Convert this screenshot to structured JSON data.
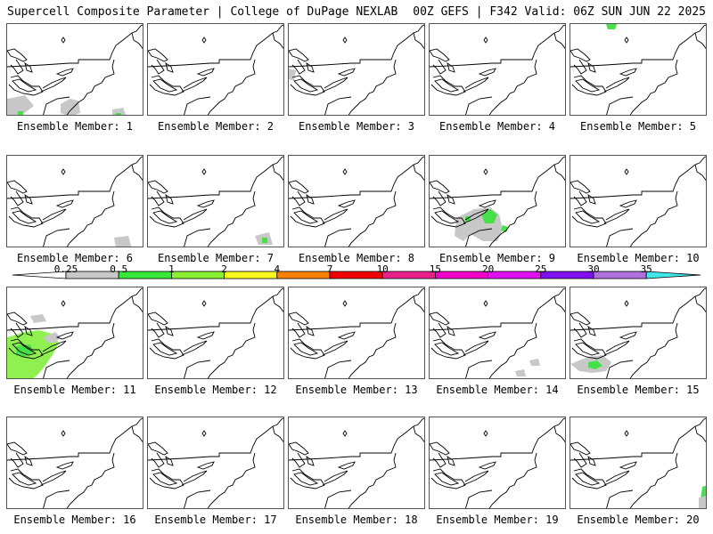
{
  "header": {
    "left": "Supercell Composite Parameter | College of DuPage NEXLAB",
    "right": "00Z GEFS | F342 Valid: 06Z SUN JUN 22 2025"
  },
  "panels": [
    {
      "label": "Ensemble Member: 1"
    },
    {
      "label": "Ensemble Member: 2"
    },
    {
      "label": "Ensemble Member: 3"
    },
    {
      "label": "Ensemble Member: 4"
    },
    {
      "label": "Ensemble Member: 5"
    },
    {
      "label": "Ensemble Member: 6"
    },
    {
      "label": "Ensemble Member: 7"
    },
    {
      "label": "Ensemble Member: 8"
    },
    {
      "label": "Ensemble Member: 9"
    },
    {
      "label": "Ensemble Member: 10"
    },
    {
      "label": "Ensemble Member: 11"
    },
    {
      "label": "Ensemble Member: 12"
    },
    {
      "label": "Ensemble Member: 13"
    },
    {
      "label": "Ensemble Member: 14"
    },
    {
      "label": "Ensemble Member: 15"
    },
    {
      "label": "Ensemble Member: 16"
    },
    {
      "label": "Ensemble Member: 17"
    },
    {
      "label": "Ensemble Member: 18"
    },
    {
      "label": "Ensemble Member: 19"
    },
    {
      "label": "Ensemble Member: 20"
    }
  ],
  "colorbar": {
    "labels": [
      "0.25",
      "0.5",
      "1",
      "2",
      "4",
      "7",
      "10",
      "15",
      "20",
      "25",
      "30",
      "35"
    ],
    "colors": [
      "#c8c8c8",
      "#38e838",
      "#88f030",
      "#f8f820",
      "#f88000",
      "#f00000",
      "#e8208a",
      "#f000c8",
      "#e010f0",
      "#8010f0",
      "#b070e0",
      "#40e8e8"
    ]
  },
  "colors": {
    "light": "#c8c8c8",
    "green": "#48e048",
    "lime": "#90f050"
  }
}
